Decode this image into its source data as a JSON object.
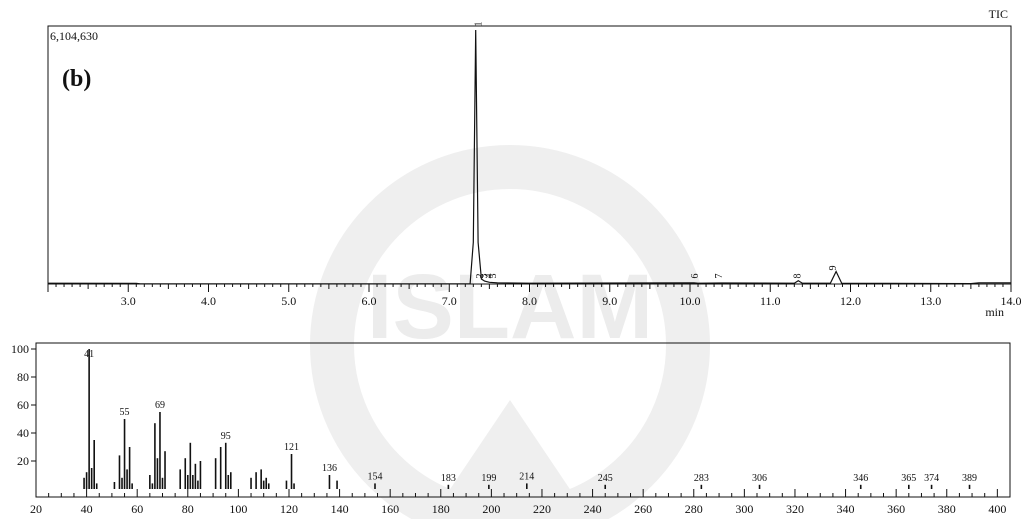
{
  "watermark_text": "ISLAM",
  "chart_data": [
    {
      "type": "line",
      "panel_label": "(b)",
      "trace_label": "TIC",
      "y_max_label": "6,104,630",
      "xlabel": "min",
      "xlim": [
        2.0,
        14.0
      ],
      "ylim": [
        0,
        6104630
      ],
      "x_ticks": [
        "3.0",
        "4.0",
        "5.0",
        "6.0",
        "7.0",
        "8.0",
        "9.0",
        "10.0",
        "11.0",
        "12.0",
        "13.0",
        "14.0"
      ],
      "series": [
        {
          "points": [
            [
              2.0,
              20000
            ],
            [
              3.1,
              14000
            ],
            [
              3.15,
              5000
            ],
            [
              7.26,
              5000
            ],
            [
              7.3,
              1000000
            ],
            [
              7.33,
              6104630
            ],
            [
              7.36,
              1000000
            ],
            [
              7.4,
              120000
            ],
            [
              7.44,
              70000
            ],
            [
              7.5,
              40000
            ],
            [
              7.6,
              30000
            ],
            [
              8.0,
              20000
            ],
            [
              10.05,
              30000
            ],
            [
              10.1,
              20000
            ],
            [
              10.4,
              25000
            ],
            [
              11.3,
              20000
            ],
            [
              11.35,
              80000
            ],
            [
              11.4,
              20000
            ],
            [
              11.75,
              20000
            ],
            [
              11.82,
              300000
            ],
            [
              11.89,
              20000
            ],
            [
              13.5,
              10000
            ],
            [
              13.6,
              30000
            ],
            [
              14.0,
              30000
            ]
          ]
        }
      ],
      "peak_labels": [
        {
          "x": 7.38,
          "label": "1"
        },
        {
          "x": 7.42,
          "label": "2"
        },
        {
          "x": 7.47,
          "label": "3"
        },
        {
          "x": 7.53,
          "label": "4"
        },
        {
          "x": 7.58,
          "label": "5"
        },
        {
          "x": 10.1,
          "label": "6"
        },
        {
          "x": 10.4,
          "label": "7"
        },
        {
          "x": 11.38,
          "label": "8"
        },
        {
          "x": 11.82,
          "label": "9"
        }
      ]
    },
    {
      "type": "bar",
      "xlim": [
        20,
        405
      ],
      "ylim": [
        0,
        100
      ],
      "x_ticks": [
        20,
        40,
        60,
        80,
        100,
        120,
        140,
        160,
        180,
        200,
        220,
        240,
        260,
        280,
        300,
        320,
        340,
        360,
        380,
        400
      ],
      "y_ticks": [
        20,
        40,
        60,
        80,
        100
      ],
      "peaks": [
        [
          39,
          8
        ],
        [
          40,
          12
        ],
        [
          41,
          100
        ],
        [
          42,
          15
        ],
        [
          43,
          35
        ],
        [
          44,
          4
        ],
        [
          51,
          5
        ],
        [
          53,
          24
        ],
        [
          54,
          8
        ],
        [
          55,
          50
        ],
        [
          56,
          14
        ],
        [
          57,
          30
        ],
        [
          58,
          4
        ],
        [
          65,
          10
        ],
        [
          66,
          4
        ],
        [
          67,
          47
        ],
        [
          68,
          22
        ],
        [
          69,
          55
        ],
        [
          70,
          8
        ],
        [
          71,
          27
        ],
        [
          77,
          14
        ],
        [
          79,
          22
        ],
        [
          80,
          10
        ],
        [
          81,
          33
        ],
        [
          82,
          10
        ],
        [
          83,
          18
        ],
        [
          84,
          6
        ],
        [
          85,
          20
        ],
        [
          91,
          22
        ],
        [
          93,
          30
        ],
        [
          95,
          33
        ],
        [
          96,
          10
        ],
        [
          97,
          12
        ],
        [
          105,
          8
        ],
        [
          107,
          12
        ],
        [
          109,
          14
        ],
        [
          110,
          6
        ],
        [
          111,
          8
        ],
        [
          112,
          4
        ],
        [
          119,
          6
        ],
        [
          121,
          25
        ],
        [
          122,
          4
        ],
        [
          136,
          10
        ],
        [
          139,
          6
        ],
        [
          154,
          4
        ],
        [
          183,
          3
        ],
        [
          199,
          3
        ],
        [
          214,
          4
        ],
        [
          245,
          3
        ],
        [
          283,
          3
        ],
        [
          306,
          3
        ],
        [
          346,
          3
        ],
        [
          365,
          3
        ],
        [
          374,
          3
        ],
        [
          389,
          3
        ]
      ],
      "peak_labels": [
        {
          "x": 41,
          "y": 100,
          "label": "41"
        },
        {
          "x": 55,
          "y": 50,
          "label": "55"
        },
        {
          "x": 69,
          "y": 55,
          "label": "69"
        },
        {
          "x": 95,
          "y": 33,
          "label": "95"
        },
        {
          "x": 121,
          "y": 25,
          "label": "121"
        },
        {
          "x": 136,
          "y": 10,
          "label": "136"
        },
        {
          "x": 154,
          "y": 4,
          "label": "154"
        },
        {
          "x": 183,
          "y": 3,
          "label": "183"
        },
        {
          "x": 199,
          "y": 3,
          "label": "199"
        },
        {
          "x": 214,
          "y": 4,
          "label": "214"
        },
        {
          "x": 245,
          "y": 3,
          "label": "245"
        },
        {
          "x": 283,
          "y": 3,
          "label": "283"
        },
        {
          "x": 306,
          "y": 3,
          "label": "306"
        },
        {
          "x": 346,
          "y": 3,
          "label": "346"
        },
        {
          "x": 365,
          "y": 3,
          "label": "365"
        },
        {
          "x": 374,
          "y": 3,
          "label": "374"
        },
        {
          "x": 389,
          "y": 3,
          "label": "389"
        }
      ]
    }
  ]
}
